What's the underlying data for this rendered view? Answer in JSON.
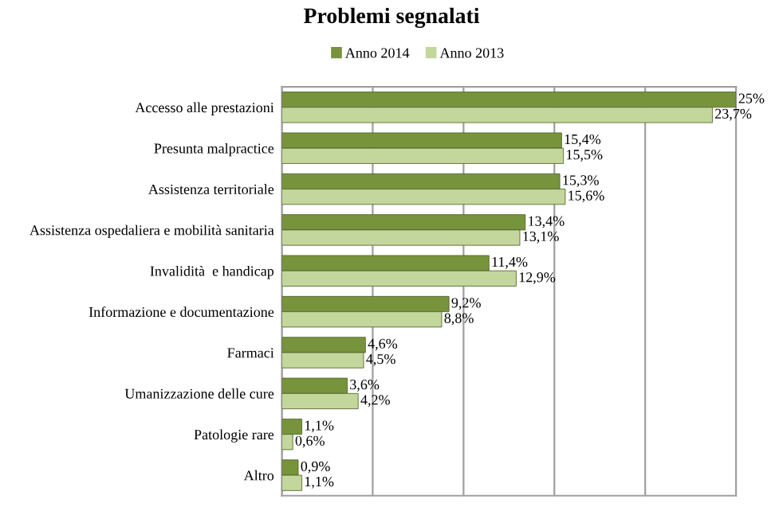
{
  "chart_data": {
    "type": "bar",
    "title": "Problemi segnalati",
    "orientation": "horizontal",
    "categories": [
      "Accesso alle prestazioni",
      "Presunta malpractice",
      "Assistenza territoriale",
      "Assistenza ospedaliera e mobilità sanitaria",
      "Invalidità  e handicap",
      "Informazione e documentazione",
      "Farmaci",
      "Umanizzazione delle cure",
      "Patologie rare",
      "Altro"
    ],
    "series": [
      {
        "name": "Anno 2014",
        "color": "#77933c",
        "values": [
          25,
          15.4,
          15.3,
          13.4,
          11.4,
          9.2,
          4.6,
          3.6,
          1.1,
          0.9
        ],
        "value_labels": [
          "25%",
          "15,4%",
          "15,3%",
          "13,4%",
          "11,4%",
          "9,2%",
          "4,6%",
          "3,6%",
          "1,1%",
          "0,9%"
        ]
      },
      {
        "name": "Anno 2013",
        "color": "#c3d69b",
        "values": [
          23.7,
          15.5,
          15.6,
          13.1,
          12.9,
          8.8,
          4.5,
          4.2,
          0.6,
          1.1
        ],
        "value_labels": [
          "23,7%",
          "15,5%",
          "15,6%",
          "13,1%",
          "12,9%",
          "8,8%",
          "4,5%",
          "4,2%",
          "0,6%",
          "1,1%"
        ]
      }
    ],
    "xlim": [
      0,
      25
    ],
    "xticks": [
      {
        "value": 0,
        "label": null
      },
      {
        "value": 5,
        "label": null
      },
      {
        "value": 10,
        "label": null
      },
      {
        "value": 15,
        "label": null
      },
      {
        "value": 20,
        "label": null
      },
      {
        "value": 25,
        "label": null
      }
    ],
    "tick_labels": "y",
    "grid": "x",
    "legend": "top"
  }
}
